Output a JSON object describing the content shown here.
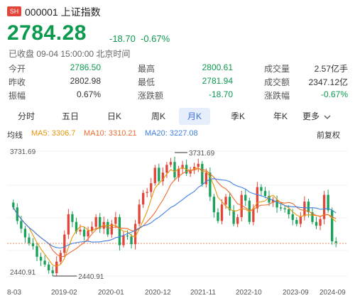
{
  "header": {
    "exchange_badge": "SH",
    "code_name": "000001 上证指数",
    "price": "2784.28",
    "change": "-18.70",
    "change_pct": "-0.67%",
    "status": "已收盘 09-04 15:00:00 北京时间"
  },
  "stats": [
    [
      {
        "label": "今开",
        "value": "2786.50",
        "color": "green"
      },
      {
        "label": "最高",
        "value": "2800.61",
        "color": "green"
      },
      {
        "label": "成交量",
        "value": "2.57亿手",
        "color": "plain"
      }
    ],
    [
      {
        "label": "昨收",
        "value": "2802.98",
        "color": "plain"
      },
      {
        "label": "最低",
        "value": "2781.94",
        "color": "green"
      },
      {
        "label": "成交额",
        "value": "2347.12亿",
        "color": "plain"
      }
    ],
    [
      {
        "label": "振幅",
        "value": "0.67%",
        "color": "plain"
      },
      {
        "label": "涨跌额",
        "value": "-18.70",
        "color": "green"
      },
      {
        "label": "涨跌幅",
        "value": "-0.67%",
        "color": "green"
      }
    ]
  ],
  "tabs": [
    "分时",
    "五日",
    "日K",
    "周K",
    "月K",
    "季K",
    "年K",
    "更多"
  ],
  "active_tab": "月K",
  "legend": {
    "title": "均线",
    "ma5": "MA5: 3306.7",
    "ma10": "MA10: 3310.21",
    "ma20": "MA20: 3227.08",
    "adjust": "前复权"
  },
  "colors": {
    "up": "#e2463a",
    "down": "#1aa15a",
    "ma5": "#e8950b",
    "ma10": "#ef6c2f",
    "ma20": "#3f7fe0",
    "accent": "#3a6fd8"
  },
  "chart_data": {
    "type": "candlestick",
    "ylim": [
      2440.91,
      3731.69
    ],
    "y_ticks": [
      "3731.69",
      "2440.91"
    ],
    "high_marker": "3731.69",
    "low_marker": "2440.91",
    "x_ticks": [
      "8-03",
      "2019-02",
      "2020-01",
      "2020-12",
      "2021-11",
      "2022-10",
      "2023-09",
      "2024-09"
    ]
  }
}
